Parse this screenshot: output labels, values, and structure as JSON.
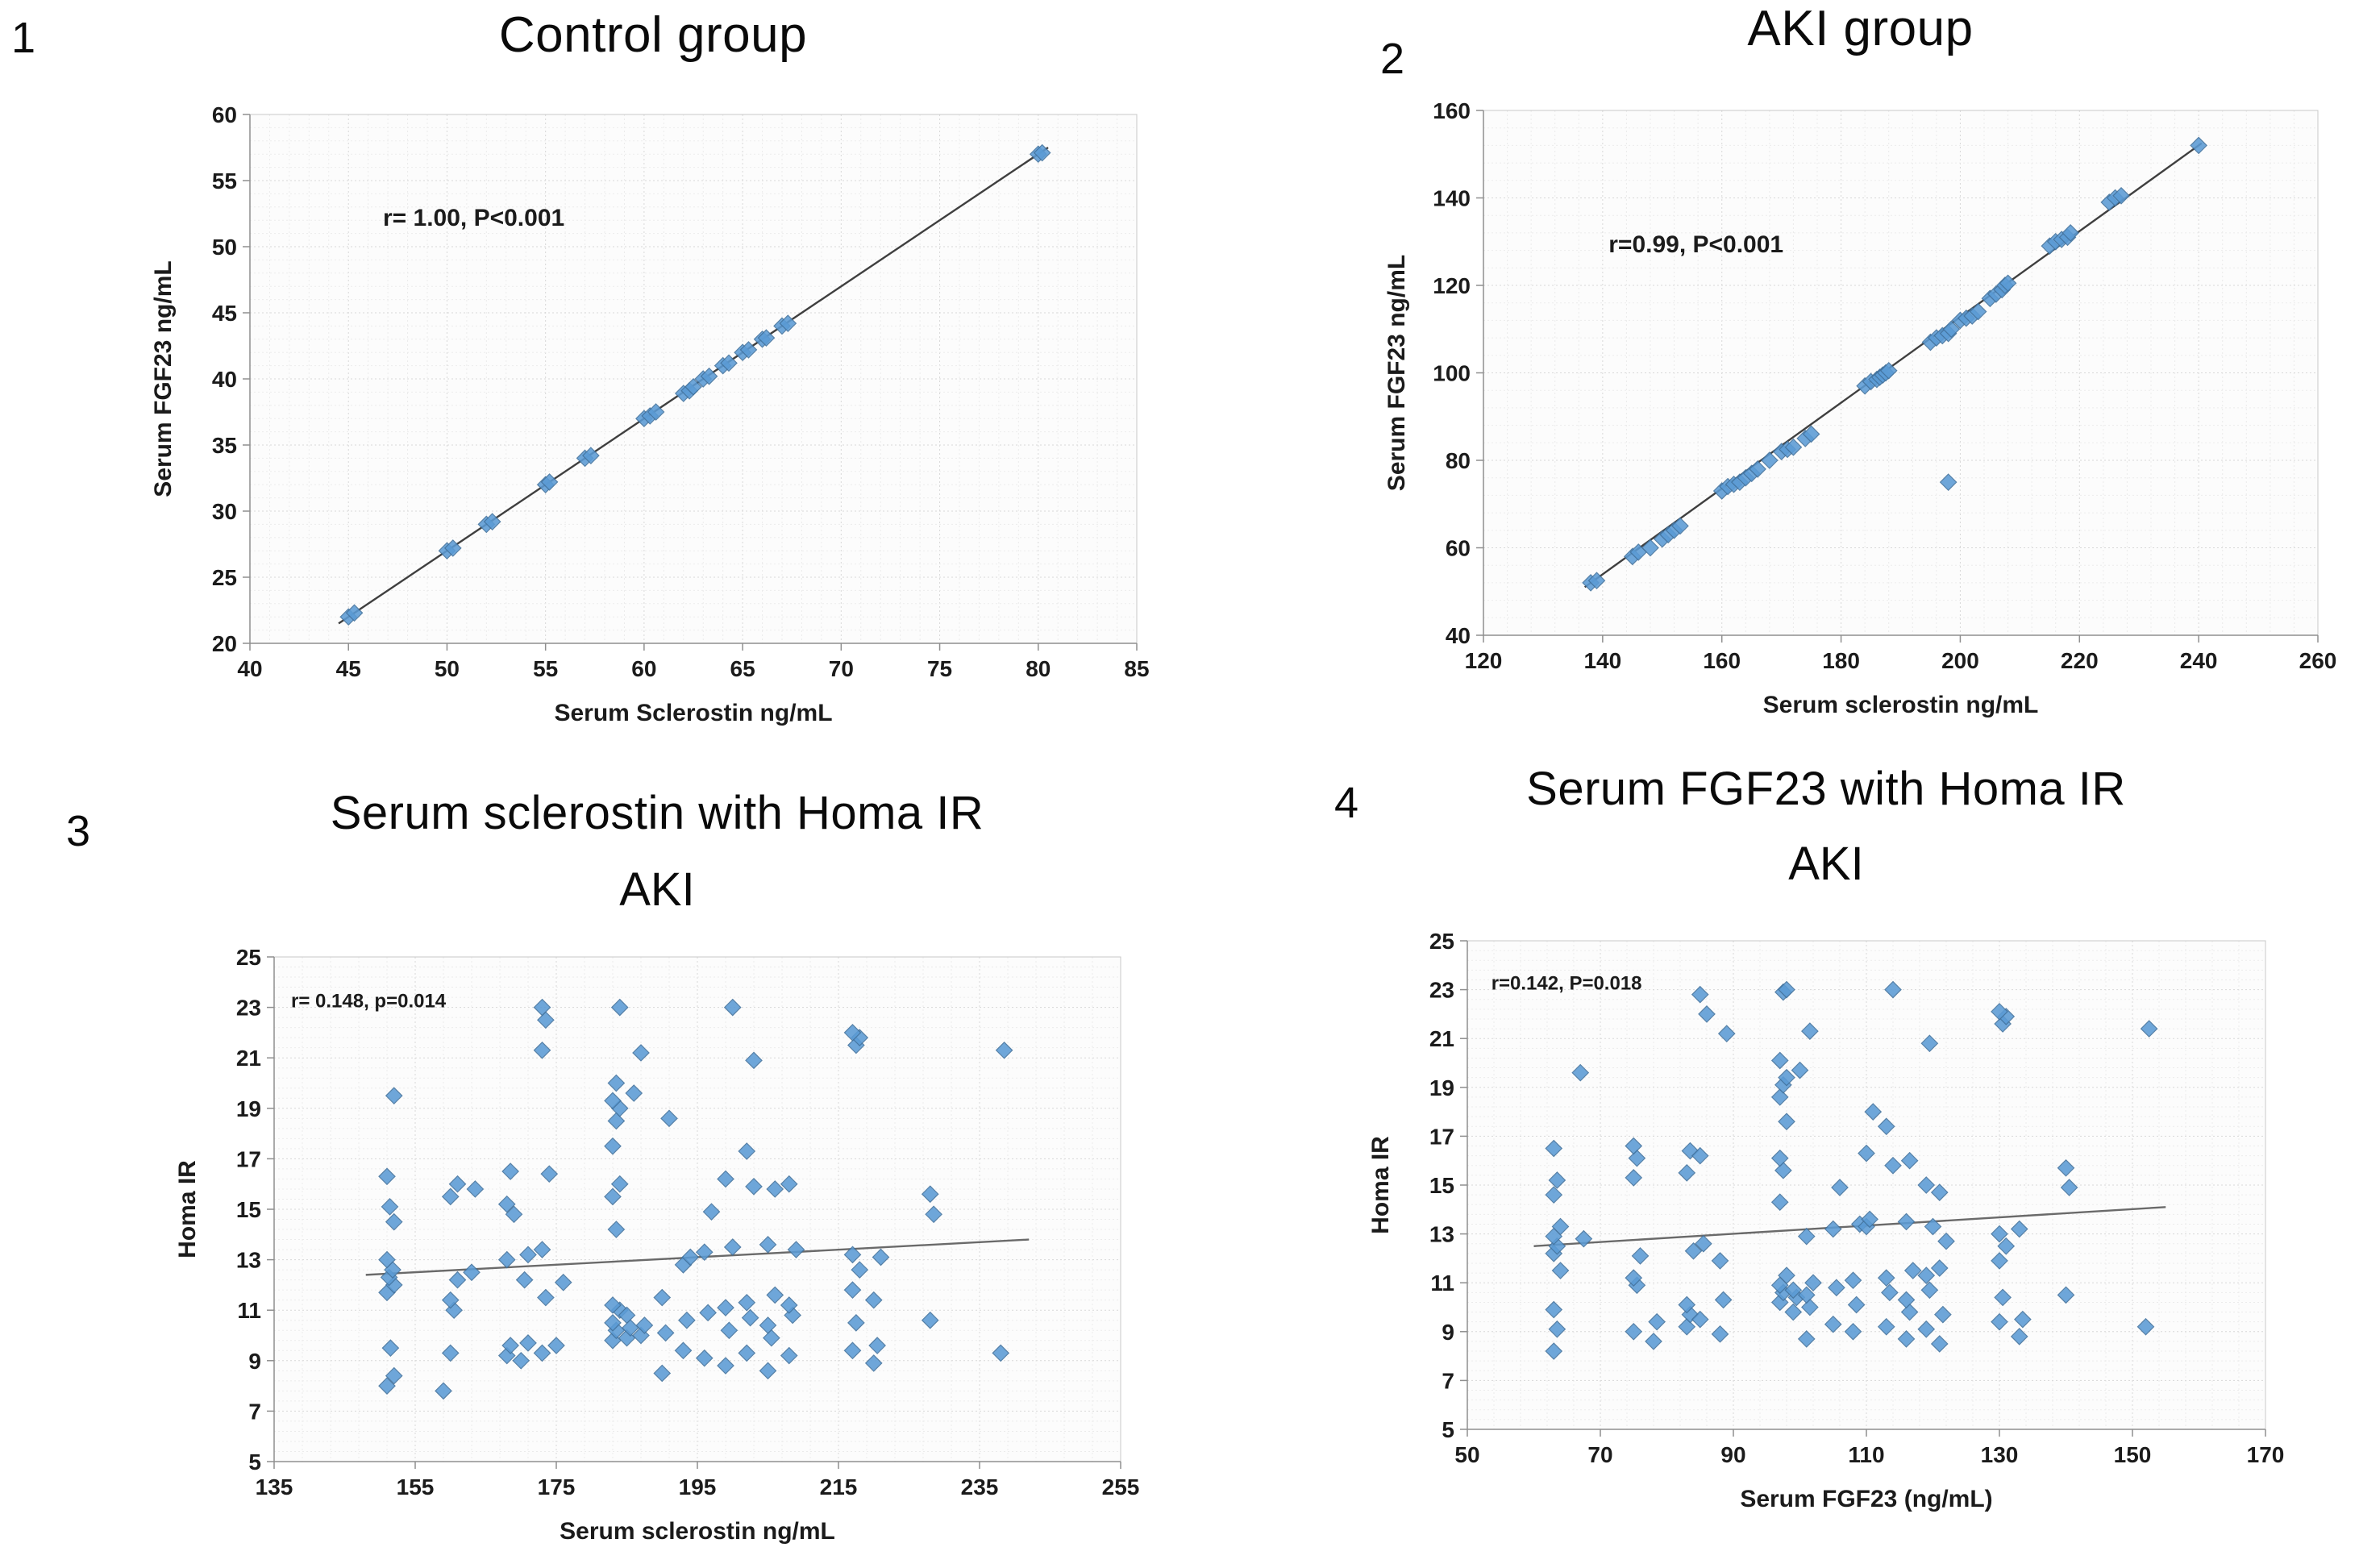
{
  "figure": {
    "panels": [
      {
        "number": "1"
      },
      {
        "number": "2"
      },
      {
        "number": "3"
      },
      {
        "number": "4"
      }
    ]
  },
  "colors": {
    "marker_fill": "#5b9bd5",
    "marker_stroke": "#41719c",
    "trend_dark": "#3f3f3f",
    "trend_light": "#6a6a6a",
    "grid_minor": "#ebebeb",
    "grid_major": "#d8d8d8",
    "axis": "#8f8f8f",
    "text": "#1b1b1b"
  },
  "chart_data": [
    {
      "type": "scatter",
      "title": "Control group",
      "xlabel": "Serum Sclerostin ng/mL",
      "ylabel": "Serum FGF23 ng/mL",
      "xlim": [
        40,
        85
      ],
      "ylim": [
        20,
        60
      ],
      "xticks": [
        40,
        45,
        50,
        55,
        60,
        65,
        70,
        75,
        80,
        85
      ],
      "yticks": [
        20,
        25,
        30,
        35,
        40,
        45,
        50,
        55,
        60
      ],
      "annotation": {
        "text": "r= 1.00, P<0.001",
        "fx": 0.15,
        "fy": 0.21
      },
      "trendline": {
        "x": [
          44.5,
          80.5
        ],
        "y": [
          21.5,
          57.5
        ]
      },
      "points": [
        [
          45,
          22
        ],
        [
          45.3,
          22.3
        ],
        [
          50,
          27
        ],
        [
          50.3,
          27.2
        ],
        [
          52,
          29
        ],
        [
          52.3,
          29.2
        ],
        [
          55,
          32
        ],
        [
          55.2,
          32.2
        ],
        [
          57,
          34
        ],
        [
          57.3,
          34.2
        ],
        [
          60,
          37
        ],
        [
          60.3,
          37.2
        ],
        [
          60.6,
          37.5
        ],
        [
          62,
          38.9
        ],
        [
          62.3,
          39.1
        ],
        [
          62.5,
          39.4
        ],
        [
          63,
          40
        ],
        [
          63.3,
          40.2
        ],
        [
          64,
          41
        ],
        [
          64.3,
          41.2
        ],
        [
          65,
          42
        ],
        [
          65.3,
          42.2
        ],
        [
          66,
          43
        ],
        [
          66.2,
          43.1
        ],
        [
          67,
          44
        ],
        [
          67.3,
          44.2
        ],
        [
          80,
          57
        ],
        [
          80.2,
          57.1
        ]
      ]
    },
    {
      "type": "scatter",
      "title": "AKI group",
      "xlabel": "Serum sclerostin ng/mL",
      "ylabel": "Serum FGF23 ng/mL",
      "xlim": [
        120,
        260
      ],
      "ylim": [
        40,
        160
      ],
      "xticks": [
        120,
        140,
        160,
        180,
        200,
        220,
        240,
        260
      ],
      "yticks": [
        40,
        60,
        80,
        100,
        120,
        140,
        160
      ],
      "annotation": {
        "text": "r=0.99, P<0.001",
        "fx": 0.15,
        "fy": 0.27
      },
      "trendline": {
        "x": [
          137,
          240.5
        ],
        "y": [
          51,
          152.5
        ]
      },
      "points": [
        [
          138,
          52
        ],
        [
          139,
          52.5
        ],
        [
          145,
          58
        ],
        [
          146,
          59
        ],
        [
          148,
          60
        ],
        [
          150,
          62
        ],
        [
          151,
          63
        ],
        [
          152,
          64
        ],
        [
          153,
          65
        ],
        [
          160,
          73
        ],
        [
          161,
          74
        ],
        [
          162,
          74.5
        ],
        [
          163,
          75
        ],
        [
          164,
          76
        ],
        [
          165,
          77
        ],
        [
          166,
          78
        ],
        [
          168,
          80
        ],
        [
          170,
          82
        ],
        [
          171,
          82.5
        ],
        [
          172,
          83
        ],
        [
          174,
          85
        ],
        [
          175,
          86
        ],
        [
          184,
          97
        ],
        [
          185,
          98
        ],
        [
          186,
          98.5
        ],
        [
          186.5,
          99
        ],
        [
          187,
          99.5
        ],
        [
          187.5,
          100
        ],
        [
          188,
          100.5
        ],
        [
          195,
          107
        ],
        [
          196,
          108
        ],
        [
          197,
          108.5
        ],
        [
          198,
          109
        ],
        [
          198.5,
          110
        ],
        [
          200,
          112
        ],
        [
          201,
          112.5
        ],
        [
          202,
          113
        ],
        [
          203,
          114
        ],
        [
          205,
          117
        ],
        [
          206,
          118
        ],
        [
          207,
          119
        ],
        [
          207.5,
          120
        ],
        [
          208,
          120.5
        ],
        [
          215,
          129
        ],
        [
          216,
          130
        ],
        [
          217,
          130.5
        ],
        [
          218,
          131
        ],
        [
          218.5,
          132
        ],
        [
          225,
          139
        ],
        [
          226,
          140
        ],
        [
          227,
          140.5
        ],
        [
          240,
          152
        ],
        [
          198,
          75
        ]
      ]
    },
    {
      "type": "scatter",
      "title": "Serum sclerostin with Homa IR",
      "subtitle": "AKI",
      "xlabel": "Serum sclerostin ng/mL",
      "ylabel": "Homa IR",
      "xlim": [
        135,
        255
      ],
      "ylim": [
        5,
        25
      ],
      "xticks": [
        135,
        155,
        175,
        195,
        215,
        235,
        255
      ],
      "yticks": [
        5,
        7,
        9,
        11,
        13,
        15,
        17,
        19,
        21,
        23,
        25
      ],
      "annotation": {
        "text": "r= 0.148, p=0.014",
        "fx": 0.02,
        "fy": 0.1
      },
      "trendline": {
        "x": [
          148,
          242
        ],
        "y": [
          12.4,
          13.8
        ]
      },
      "points": [
        [
          151,
          8.0
        ],
        [
          152,
          8.4
        ],
        [
          151.5,
          9.5
        ],
        [
          151,
          11.7
        ],
        [
          152,
          12.0
        ],
        [
          151.3,
          12.3
        ],
        [
          151.8,
          12.6
        ],
        [
          151,
          13.0
        ],
        [
          152,
          14.5
        ],
        [
          151.4,
          15.1
        ],
        [
          151,
          16.3
        ],
        [
          152,
          19.5
        ],
        [
          159,
          7.8
        ],
        [
          160,
          9.3
        ],
        [
          160.5,
          11.0
        ],
        [
          160,
          11.4
        ],
        [
          161,
          12.2
        ],
        [
          160,
          15.5
        ],
        [
          161,
          16.0
        ],
        [
          163,
          12.5
        ],
        [
          163.5,
          15.8
        ],
        [
          168,
          9.2
        ],
        [
          168.5,
          9.6
        ],
        [
          168,
          13.0
        ],
        [
          169,
          14.8
        ],
        [
          168,
          15.2
        ],
        [
          168.5,
          16.5
        ],
        [
          170,
          9.0
        ],
        [
          171,
          9.7
        ],
        [
          170.5,
          12.2
        ],
        [
          171,
          13.2
        ],
        [
          173,
          9.3
        ],
        [
          173.5,
          11.5
        ],
        [
          173,
          13.4
        ],
        [
          174,
          16.4
        ],
        [
          173,
          21.3
        ],
        [
          173.5,
          22.5
        ],
        [
          173,
          23.0
        ],
        [
          175,
          9.6
        ],
        [
          176,
          12.1
        ],
        [
          183,
          9.8
        ],
        [
          183.5,
          10.2
        ],
        [
          183,
          10.5
        ],
        [
          184,
          11.0
        ],
        [
          183,
          11.2
        ],
        [
          183.5,
          14.2
        ],
        [
          183,
          15.5
        ],
        [
          184,
          16.0
        ],
        [
          183,
          17.5
        ],
        [
          183.5,
          18.5
        ],
        [
          184,
          19.0
        ],
        [
          183,
          19.3
        ],
        [
          183.5,
          20.0
        ],
        [
          184,
          23.0
        ],
        [
          185,
          9.9
        ],
        [
          185.5,
          10.3
        ],
        [
          185,
          10.8
        ],
        [
          186,
          19.6
        ],
        [
          187,
          10.0
        ],
        [
          187.5,
          10.4
        ],
        [
          187,
          21.2
        ],
        [
          190,
          8.5
        ],
        [
          190.5,
          10.1
        ],
        [
          190,
          11.5
        ],
        [
          191,
          18.6
        ],
        [
          193,
          9.4
        ],
        [
          193.5,
          10.6
        ],
        [
          193,
          12.8
        ],
        [
          194,
          13.1
        ],
        [
          196,
          9.1
        ],
        [
          196.5,
          10.9
        ],
        [
          196,
          13.3
        ],
        [
          197,
          14.9
        ],
        [
          199,
          8.8
        ],
        [
          199.5,
          10.2
        ],
        [
          199,
          11.1
        ],
        [
          200,
          13.5
        ],
        [
          199,
          16.2
        ],
        [
          200,
          23.0
        ],
        [
          202,
          9.3
        ],
        [
          202.5,
          10.7
        ],
        [
          202,
          11.3
        ],
        [
          203,
          15.9
        ],
        [
          202,
          17.3
        ],
        [
          203,
          20.9
        ],
        [
          205,
          8.6
        ],
        [
          205.5,
          9.9
        ],
        [
          205,
          10.4
        ],
        [
          206,
          11.6
        ],
        [
          205,
          13.6
        ],
        [
          206,
          15.8
        ],
        [
          208,
          9.2
        ],
        [
          208.5,
          10.8
        ],
        [
          208,
          11.2
        ],
        [
          209,
          13.4
        ],
        [
          208,
          16.0
        ],
        [
          217,
          9.4
        ],
        [
          217.5,
          10.5
        ],
        [
          217,
          11.8
        ],
        [
          218,
          12.6
        ],
        [
          217,
          13.2
        ],
        [
          217.5,
          21.5
        ],
        [
          218,
          21.8
        ],
        [
          217,
          22.0
        ],
        [
          220,
          8.9
        ],
        [
          220.5,
          9.6
        ],
        [
          220,
          11.4
        ],
        [
          221,
          13.1
        ],
        [
          228,
          10.6
        ],
        [
          228.5,
          14.8
        ],
        [
          228,
          15.6
        ],
        [
          238,
          9.3
        ],
        [
          238.5,
          21.3
        ]
      ]
    },
    {
      "type": "scatter",
      "title": "Serum FGF23 with Homa IR",
      "subtitle": "AKI",
      "xlabel": "Serum FGF23 (ng/mL)",
      "ylabel": "Homa IR",
      "xlim": [
        50,
        170
      ],
      "ylim": [
        5,
        25
      ],
      "xticks": [
        50,
        70,
        90,
        110,
        130,
        150,
        170
      ],
      "yticks": [
        5,
        7,
        9,
        11,
        13,
        15,
        17,
        19,
        21,
        23,
        25
      ],
      "annotation": {
        "text": "r=0.142, P=0.018",
        "fx": 0.03,
        "fy": 0.1
      },
      "trendline": {
        "x": [
          60,
          155
        ],
        "y": [
          12.5,
          14.1
        ]
      },
      "points": [
        [
          63,
          8.2
        ],
        [
          63.5,
          9.1
        ],
        [
          63,
          9.9
        ],
        [
          64,
          11.5
        ],
        [
          63,
          12.2
        ],
        [
          63.5,
          12.5
        ],
        [
          63,
          12.9
        ],
        [
          64,
          13.3
        ],
        [
          63,
          14.6
        ],
        [
          63.5,
          15.2
        ],
        [
          63,
          16.5
        ],
        [
          67,
          19.6
        ],
        [
          67.5,
          12.8
        ],
        [
          75,
          9.0
        ],
        [
          75.5,
          10.9
        ],
        [
          75,
          11.2
        ],
        [
          76,
          12.1
        ],
        [
          75,
          15.3
        ],
        [
          75.5,
          16.1
        ],
        [
          75,
          16.6
        ],
        [
          78,
          8.6
        ],
        [
          78.5,
          9.4
        ],
        [
          83,
          9.2
        ],
        [
          83.5,
          9.7
        ],
        [
          83,
          10.1
        ],
        [
          84,
          12.3
        ],
        [
          83,
          15.5
        ],
        [
          83.5,
          16.4
        ],
        [
          85,
          9.5
        ],
        [
          85.5,
          12.6
        ],
        [
          85,
          16.2
        ],
        [
          86,
          22.0
        ],
        [
          85,
          22.8
        ],
        [
          88,
          8.9
        ],
        [
          88.5,
          10.3
        ],
        [
          88,
          11.9
        ],
        [
          89,
          21.2
        ],
        [
          97,
          10.2
        ],
        [
          97.5,
          10.6
        ],
        [
          97,
          10.9
        ],
        [
          98,
          11.3
        ],
        [
          97,
          14.3
        ],
        [
          97.5,
          15.6
        ],
        [
          97,
          16.1
        ],
        [
          98,
          17.6
        ],
        [
          97,
          18.6
        ],
        [
          97.5,
          19.1
        ],
        [
          98,
          19.4
        ],
        [
          97,
          20.1
        ],
        [
          97.5,
          22.9
        ],
        [
          98,
          23.0
        ],
        [
          99,
          9.8
        ],
        [
          99.5,
          10.4
        ],
        [
          99,
          10.7
        ],
        [
          100,
          19.7
        ],
        [
          101,
          8.7
        ],
        [
          101.5,
          10.0
        ],
        [
          101,
          10.5
        ],
        [
          102,
          11.0
        ],
        [
          101,
          12.9
        ],
        [
          101.5,
          21.3
        ],
        [
          105,
          9.3
        ],
        [
          105.5,
          10.8
        ],
        [
          105,
          13.2
        ],
        [
          106,
          14.9
        ],
        [
          108,
          9.0
        ],
        [
          108.5,
          10.1
        ],
        [
          108,
          11.1
        ],
        [
          109,
          13.4
        ],
        [
          110,
          13.3
        ],
        [
          110.5,
          13.6
        ],
        [
          110,
          16.3
        ],
        [
          111,
          18.0
        ],
        [
          113,
          9.2
        ],
        [
          113.5,
          10.6
        ],
        [
          113,
          11.2
        ],
        [
          114,
          15.8
        ],
        [
          113,
          17.4
        ],
        [
          114,
          23.0
        ],
        [
          116,
          8.7
        ],
        [
          116.5,
          9.8
        ],
        [
          116,
          10.3
        ],
        [
          117,
          11.5
        ],
        [
          116,
          13.5
        ],
        [
          116.5,
          16.0
        ],
        [
          119,
          9.1
        ],
        [
          119.5,
          10.7
        ],
        [
          119,
          11.3
        ],
        [
          120,
          13.3
        ],
        [
          119,
          15.0
        ],
        [
          119.5,
          20.8
        ],
        [
          121,
          8.5
        ],
        [
          121.5,
          9.7
        ],
        [
          121,
          11.6
        ],
        [
          122,
          12.7
        ],
        [
          121,
          14.7
        ],
        [
          130,
          9.4
        ],
        [
          130.5,
          10.4
        ],
        [
          130,
          11.9
        ],
        [
          131,
          12.5
        ],
        [
          130,
          13.0
        ],
        [
          130.5,
          21.6
        ],
        [
          131,
          21.9
        ],
        [
          130,
          22.1
        ],
        [
          133,
          8.8
        ],
        [
          133.5,
          9.5
        ],
        [
          133,
          13.2
        ],
        [
          140,
          10.5
        ],
        [
          140.5,
          14.9
        ],
        [
          140,
          15.7
        ],
        [
          152,
          9.2
        ],
        [
          152.5,
          21.4
        ]
      ]
    }
  ]
}
